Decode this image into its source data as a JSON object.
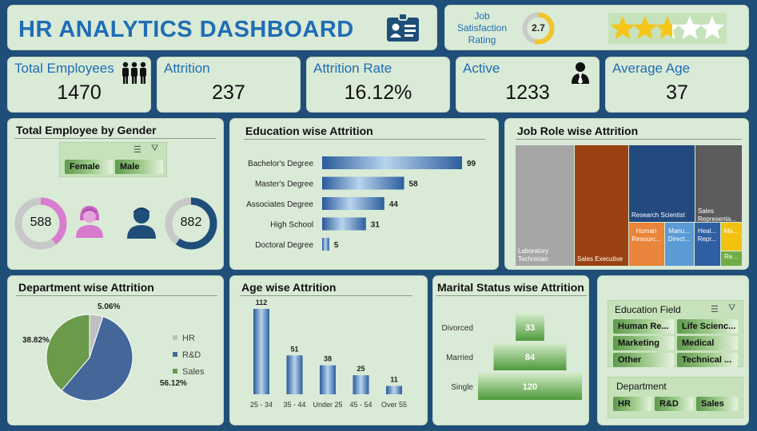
{
  "header": {
    "title": "HR ANALYTICS DASHBOARD"
  },
  "satisfaction": {
    "label_lines": [
      "Job",
      "Satisfaction",
      "Rating"
    ],
    "value": "2.7",
    "score": 2.7,
    "max": 5,
    "stars_filled": 2.7
  },
  "kpis": [
    {
      "label": "Total Employees",
      "value": "1470",
      "icon": "people-group-icon"
    },
    {
      "label": "Attrition",
      "value": "237"
    },
    {
      "label": "Attrition Rate",
      "value": "16.12%"
    },
    {
      "label": "Active",
      "value": "1233",
      "icon": "businessman-icon"
    },
    {
      "label": "Average Age",
      "value": "37"
    }
  ],
  "gender": {
    "title": "Total Employee by Gender",
    "slicer_options": [
      "Female",
      "Male"
    ],
    "female_value": "588",
    "male_value": "882",
    "female": 588,
    "male": 882,
    "colors": {
      "female": "#d87dcf",
      "male": "#1f4e79",
      "ring_bg": "#c8c8c8"
    }
  },
  "education": {
    "title": "Education wise Attrition",
    "chart_data": {
      "type": "bar",
      "orientation": "horizontal",
      "categories": [
        "Bachelor's Degree",
        "Master's Degree",
        "Associates Degree",
        "High School",
        "Doctoral Degree"
      ],
      "values": [
        99,
        58,
        44,
        31,
        5
      ]
    }
  },
  "jobrole": {
    "title": "Job Role wise Attrition",
    "items": [
      {
        "label": "Laboratory Technician",
        "color": "#a6a6a6"
      },
      {
        "label": "Sales Executive",
        "color": "#9b4212"
      },
      {
        "label": "Research Scientist",
        "color": "#23497e"
      },
      {
        "label": "Sales Representa...",
        "color": "#5c5c5c"
      },
      {
        "label": "Human Resourc...",
        "color": "#e9843a"
      },
      {
        "label": "Manu... Direct...",
        "color": "#5b9bd5"
      },
      {
        "label": "Heal... Repr...",
        "color": "#2e5fa3"
      },
      {
        "label": "Ma...",
        "color": "#f3c211"
      },
      {
        "label": "Re...",
        "color": "#70ad47"
      }
    ]
  },
  "department": {
    "title": "Department wise Attrition",
    "chart_data": {
      "type": "pie",
      "categories": [
        "HR",
        "R&D",
        "Sales"
      ],
      "values": [
        5.06,
        56.12,
        38.82
      ],
      "labels": [
        "5.06%",
        "56.12%",
        "38.82%"
      ],
      "colors": [
        "#bfbfbf",
        "#44679a",
        "#6b9a4a"
      ],
      "legend": "right"
    }
  },
  "age": {
    "title": "Age wise Attrition",
    "chart_data": {
      "type": "bar",
      "categories": [
        "25 - 34",
        "35 - 44",
        "Under 25",
        "45 - 54",
        "Over 55"
      ],
      "values": [
        112,
        51,
        38,
        25,
        11
      ]
    }
  },
  "marital": {
    "title": "Marital Status wise Attrition",
    "chart_data": {
      "type": "bar",
      "orientation": "horizontal-funnel",
      "categories": [
        "Divorced",
        "Married",
        "Single"
      ],
      "values": [
        33,
        84,
        120
      ]
    }
  },
  "slicers": {
    "education_field": {
      "title": "Education Field",
      "options": [
        "Human Re...",
        "Life Scienc...",
        "Marketing",
        "Medical",
        "Other",
        "Technical ..."
      ]
    },
    "department": {
      "title": "Department",
      "options": [
        "HR",
        "R&D",
        "Sales"
      ]
    }
  }
}
